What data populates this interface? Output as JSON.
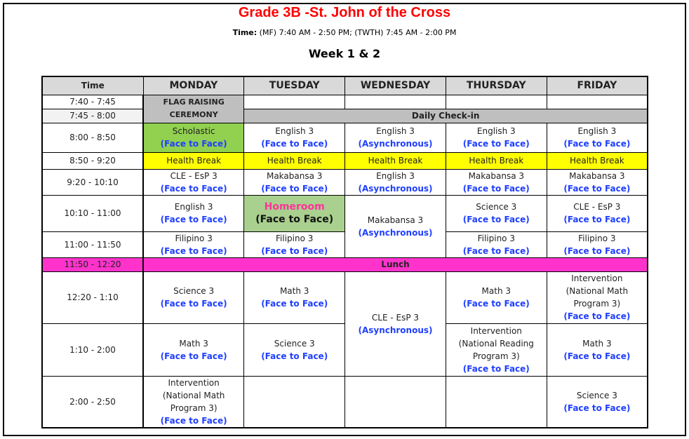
{
  "header": {
    "title": "Grade 3B -St. John of the Cross",
    "time_label": "Time:",
    "time_value": " (MF) 7:40 AM - 2:50 PM; (TWTH) 7:45 AM - 2:00 PM",
    "week": "Week 1 & 2"
  },
  "colors": {
    "title": "#ff0000",
    "mode": "#1f3fff",
    "gray": "#bfbfbf",
    "green": "#92d050",
    "yellow": "#ffff00",
    "magenta": "#ff33cc",
    "homeroom_bg": "#a9d08e",
    "homeroom_text": "#ff3399"
  },
  "columns": [
    "Time",
    "MONDAY",
    "TUESDAY",
    "WEDNESDAY",
    "THURSDAY",
    "FRIDAY"
  ],
  "rows": [
    {
      "time": "7:40 - 7:45",
      "h": 20,
      "cells": [
        {
          "lines": [
            "FLAG RAISING",
            "CEREMONY"
          ],
          "rowspan": 2,
          "bg": "#bfbfbf",
          "bold": true,
          "small": true
        },
        {},
        {},
        {},
        {}
      ]
    },
    {
      "time": "7:45 - 8:00",
      "h": 20,
      "timebg": "#f2f2f2",
      "cells": [
        {
          "lines": [
            "Daily Check-in"
          ],
          "colspan": 4,
          "bg": "#bfbfbf",
          "bold": true
        }
      ]
    },
    {
      "time": "8:00 - 8:50",
      "h": 42,
      "cells": [
        {
          "lines": [
            "Scholastic"
          ],
          "mode": "(Face to Face)",
          "bg": "#92d050"
        },
        {
          "lines": [
            "English 3"
          ],
          "mode": "(Face to Face)"
        },
        {
          "lines": [
            "English 3"
          ],
          "mode": "(Asynchronous)"
        },
        {
          "lines": [
            "English 3"
          ],
          "mode": "(Face to Face)"
        },
        {
          "lines": [
            "English 3"
          ],
          "mode": "(Face to Face)"
        }
      ]
    },
    {
      "time": "8:50 - 9:20",
      "h": 24,
      "cells": [
        {
          "lines": [
            "Health Break"
          ],
          "bg": "#ffff00"
        },
        {
          "lines": [
            "Health Break"
          ],
          "bg": "#ffff00"
        },
        {
          "lines": [
            "Health Break"
          ],
          "bg": "#ffff00"
        },
        {
          "lines": [
            "Health Break"
          ],
          "bg": "#ffff00"
        },
        {
          "lines": [
            "Health Break"
          ],
          "bg": "#ffff00"
        }
      ]
    },
    {
      "time": "9:20 - 10:10",
      "h": 36,
      "cells": [
        {
          "lines": [
            "CLE - EsP 3"
          ],
          "mode": "(Face to Face)"
        },
        {
          "lines": [
            "Makabansa 3"
          ],
          "mode": "(Face to Face)"
        },
        {
          "lines": [
            "English 3"
          ],
          "mode": "(Asynchronous)"
        },
        {
          "lines": [
            "Makabansa 3"
          ],
          "mode": "(Face to Face)"
        },
        {
          "lines": [
            "Makabansa 3"
          ],
          "mode": "(Face to Face)"
        }
      ]
    },
    {
      "time": "10:10 - 11:00",
      "h": 52,
      "cells": [
        {
          "lines": [
            "English 3"
          ],
          "mode": "(Face to Face)"
        },
        {
          "lines": [
            "Homeroom"
          ],
          "mode": "(Face to Face)",
          "bg": "#a9d08e",
          "homeroom": true
        },
        {
          "lines": [
            "Makabansa 3"
          ],
          "mode": "(Asynchronous)",
          "rowspan": 2
        },
        {
          "lines": [
            "Science 3"
          ],
          "mode": "(Face to Face)"
        },
        {
          "lines": [
            "CLE - EsP 3"
          ],
          "mode": "(Face to Face)"
        }
      ]
    },
    {
      "time": "11:00 - 11:50",
      "h": 36,
      "cells": [
        {
          "lines": [
            "Filipino 3"
          ],
          "mode": "(Face to Face)"
        },
        {
          "lines": [
            "Filipino 3"
          ],
          "mode": "(Face to Face)"
        },
        {
          "lines": [
            "Filipino 3"
          ],
          "mode": "(Face to Face)"
        },
        {
          "lines": [
            "Filipino 3"
          ],
          "mode": "(Face to Face)"
        }
      ]
    },
    {
      "time": "11:50 - 12:20",
      "h": 20,
      "timebg": "#ff33cc",
      "cells": [
        {
          "lines": [
            "Lunch"
          ],
          "colspan": 5,
          "bg": "#ff33cc",
          "bold": true
        }
      ]
    },
    {
      "time": "12:20 - 1:10",
      "h": 74,
      "cells": [
        {
          "lines": [
            "Science 3"
          ],
          "mode": "(Face to Face)"
        },
        {
          "lines": [
            "Math 3"
          ],
          "mode": "(Face to Face)"
        },
        {
          "lines": [
            "CLE - EsP 3"
          ],
          "mode": "(Asynchronous)",
          "rowspan": 2
        },
        {
          "lines": [
            "Math 3"
          ],
          "mode": "(Face to Face)"
        },
        {
          "lines": [
            "Intervention",
            "(National Math",
            "Program 3)"
          ],
          "mode": "(Face to Face)"
        }
      ]
    },
    {
      "time": "1:10 - 2:00",
      "h": 75,
      "cells": [
        {
          "lines": [
            "Math 3"
          ],
          "mode": "(Face to Face)"
        },
        {
          "lines": [
            "Science 3"
          ],
          "mode": "(Face to Face)"
        },
        {
          "lines": [
            "Intervention",
            "(National Reading",
            "Program 3)"
          ],
          "mode": "(Face to Face)"
        },
        {
          "lines": [
            "Math 3"
          ],
          "mode": "(Face to Face)"
        }
      ]
    },
    {
      "time": "2:00 - 2:50",
      "h": 71,
      "cells": [
        {
          "lines": [
            "Intervention",
            "(National Math",
            "Program 3)"
          ],
          "mode": "(Face to Face)"
        },
        {},
        {},
        {},
        {
          "lines": [
            "Science 3"
          ],
          "mode": "(Face to Face)"
        }
      ]
    }
  ]
}
